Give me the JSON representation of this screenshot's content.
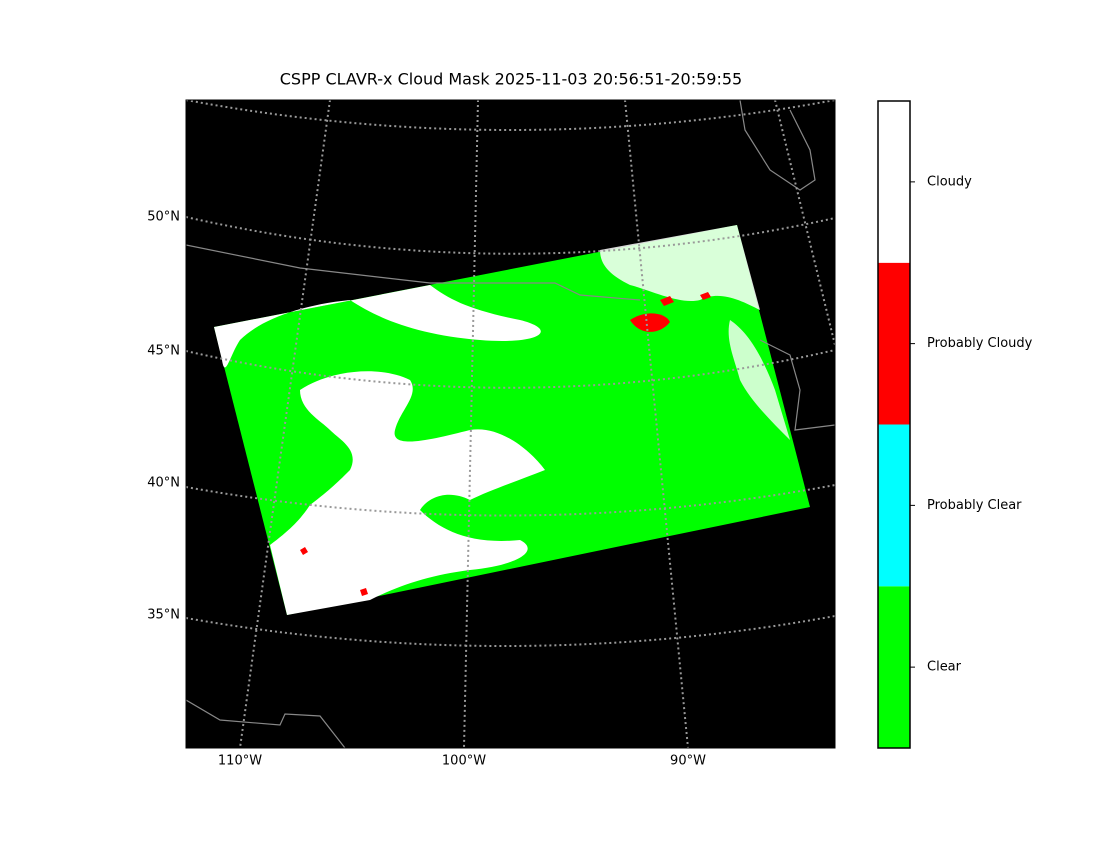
{
  "title": "CSPP CLAVR-x Cloud Mask 2025-11-03 20:56:51-20:59:55",
  "map": {
    "lat_labels": [
      "50°N",
      "45°N",
      "40°N",
      "35°N"
    ],
    "lon_labels": [
      "110°W",
      "100°W",
      "90°W"
    ]
  },
  "colorbar": {
    "classes": [
      {
        "label": "Clear",
        "color": "#00ff00"
      },
      {
        "label": "Probably Clear",
        "color": "#00ffff"
      },
      {
        "label": "Probably Cloudy",
        "color": "#ff0000"
      },
      {
        "label": "Cloudy",
        "color": "#ffffff"
      }
    ]
  }
}
